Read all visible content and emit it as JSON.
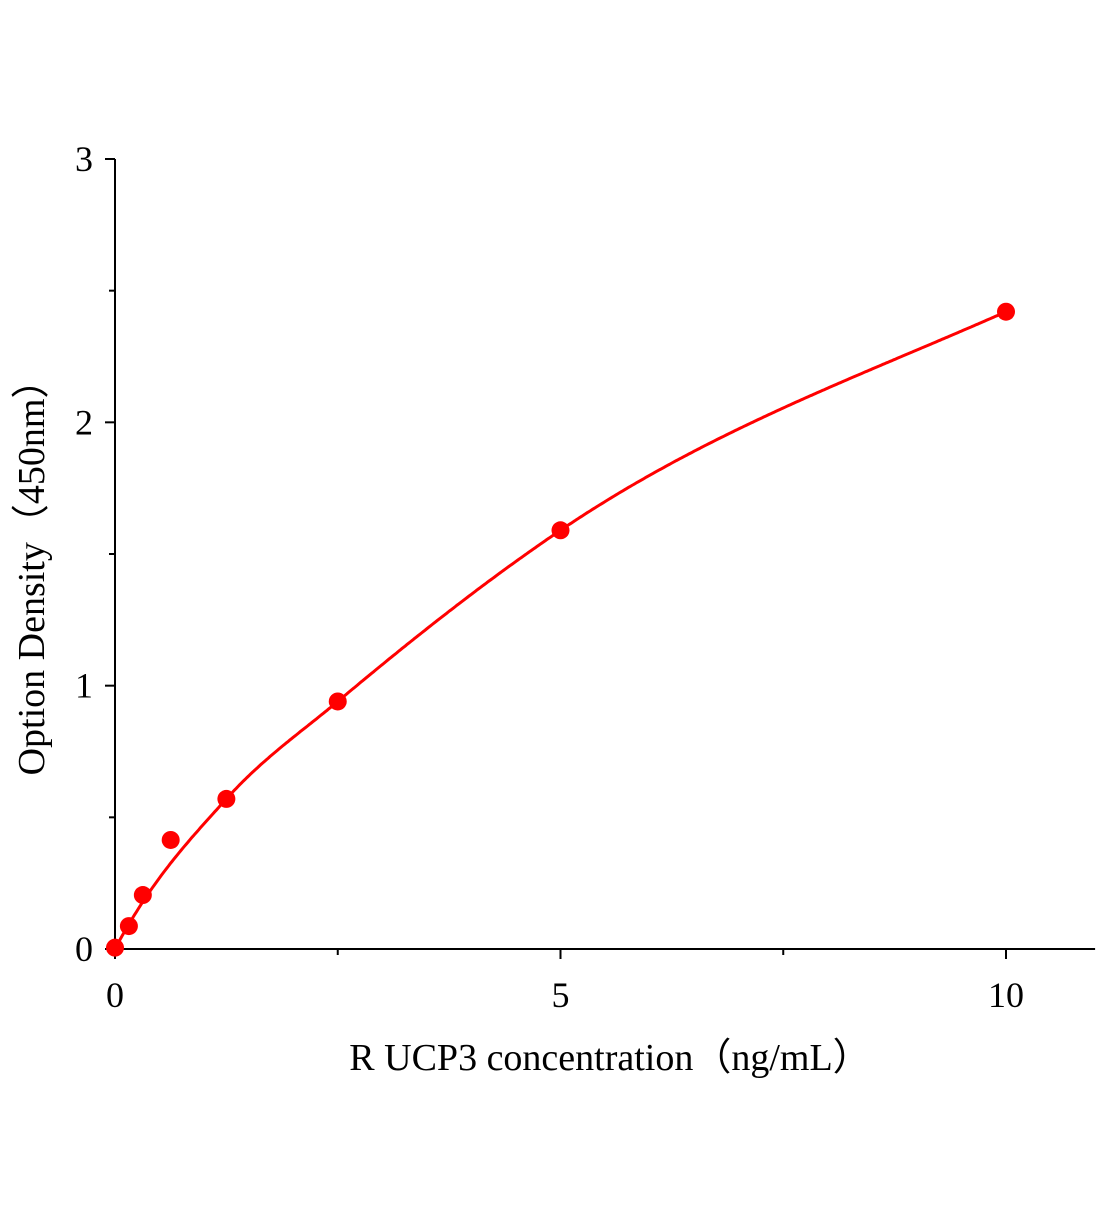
{
  "chart_data": {
    "type": "scatter",
    "title": "",
    "xlabel": "R UCP3 concentration（ng/mL）",
    "ylabel": "Option Density（450nm）",
    "xlim": [
      0,
      11
    ],
    "ylim": [
      0,
      3
    ],
    "xticks": [
      0,
      5,
      10
    ],
    "xtick_labels": [
      "0",
      "5",
      "10"
    ],
    "x_minor_ticks": [
      2.5,
      7.5
    ],
    "yticks": [
      0,
      1,
      2,
      3
    ],
    "ytick_labels": [
      "0",
      "1",
      "2",
      "3"
    ],
    "y_minor_ticks": [
      0.5,
      1.5,
      2.5
    ],
    "grid": false,
    "color": "#ff0000",
    "points": {
      "x": [
        0,
        0.156,
        0.3125,
        0.625,
        1.25,
        2.5,
        5,
        10
      ],
      "y": [
        0.005,
        0.087,
        0.205,
        0.414,
        0.57,
        0.94,
        1.59,
        2.42
      ]
    },
    "fit_curve": true
  }
}
